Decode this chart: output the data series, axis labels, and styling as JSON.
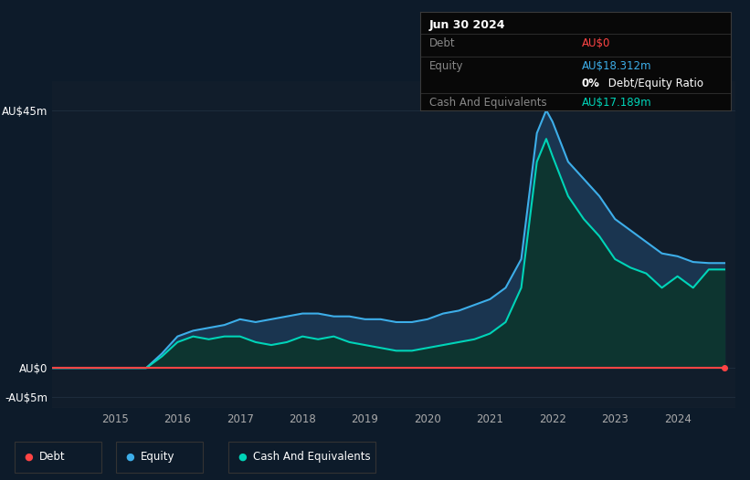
{
  "bg_color": "#0d1b2a",
  "plot_bg_color": "#111d2b",
  "ylim": [
    -7,
    50
  ],
  "y_ticks": [
    45,
    0,
    -5
  ],
  "y_tick_labels": [
    "AU$45m",
    "AU$0",
    "-AU$5m"
  ],
  "x_ticks": [
    2015,
    2016,
    2017,
    2018,
    2019,
    2020,
    2021,
    2022,
    2023,
    2024
  ],
  "xlim": [
    2014.0,
    2024.92
  ],
  "debt_color": "#ff4444",
  "equity_color": "#3daee9",
  "equity_fill_color": "#1a3550",
  "cash_color": "#00d4b8",
  "cash_fill_color": "#0d3530",
  "grid_color": "#1e2d3d",
  "years": [
    2014.0,
    2014.5,
    2015.0,
    2015.5,
    2015.75,
    2016.0,
    2016.25,
    2016.5,
    2016.75,
    2017.0,
    2017.25,
    2017.5,
    2017.75,
    2018.0,
    2018.25,
    2018.5,
    2018.75,
    2019.0,
    2019.25,
    2019.5,
    2019.75,
    2020.0,
    2020.25,
    2020.5,
    2020.75,
    2021.0,
    2021.25,
    2021.5,
    2021.75,
    2021.9,
    2022.0,
    2022.25,
    2022.5,
    2022.75,
    2023.0,
    2023.25,
    2023.5,
    2023.75,
    2024.0,
    2024.25,
    2024.5,
    2024.75
  ],
  "equity": [
    0,
    0,
    0,
    0,
    2.5,
    5.5,
    6.5,
    7.0,
    7.5,
    8.5,
    8.0,
    8.5,
    9.0,
    9.5,
    9.5,
    9.0,
    9.0,
    8.5,
    8.5,
    8.0,
    8.0,
    8.5,
    9.5,
    10.0,
    11.0,
    12.0,
    14.0,
    19.0,
    41.0,
    45.0,
    43.0,
    36.0,
    33.0,
    30.0,
    26.0,
    24.0,
    22.0,
    20.0,
    19.5,
    18.5,
    18.312,
    18.312
  ],
  "cash": [
    0,
    0,
    0,
    0,
    2.0,
    4.5,
    5.5,
    5.0,
    5.5,
    5.5,
    4.5,
    4.0,
    4.5,
    5.5,
    5.0,
    5.5,
    4.5,
    4.0,
    3.5,
    3.0,
    3.0,
    3.5,
    4.0,
    4.5,
    5.0,
    6.0,
    8.0,
    14.0,
    36.0,
    40.0,
    37.0,
    30.0,
    26.0,
    23.0,
    19.0,
    17.5,
    16.5,
    14.0,
    16.0,
    14.0,
    17.189,
    17.189
  ],
  "debt": [
    0,
    0,
    0,
    0,
    0,
    0,
    0,
    0,
    0,
    0,
    0,
    0,
    0,
    0,
    0,
    0,
    0,
    0,
    0,
    0,
    0,
    0,
    0,
    0,
    0,
    0,
    0,
    0,
    0,
    0,
    0,
    0,
    0,
    0,
    0,
    0,
    0,
    0,
    0,
    0,
    0,
    0
  ],
  "info_box_title": "Jun 30 2024",
  "info_debt_label": "Debt",
  "info_debt_value": "AU$0",
  "info_debt_color": "#ff4444",
  "info_equity_label": "Equity",
  "info_equity_value": "AU$18.312m",
  "info_equity_color": "#3daee9",
  "info_sub_bold": "0%",
  "info_sub_rest": " Debt/Equity Ratio",
  "info_cash_label": "Cash And Equivalents",
  "info_cash_value": "AU$17.189m",
  "info_cash_color": "#00d4b8",
  "legend_items": [
    {
      "label": "Debt",
      "color": "#ff4444"
    },
    {
      "label": "Equity",
      "color": "#3daee9"
    },
    {
      "label": "Cash And Equivalents",
      "color": "#00d4b8"
    }
  ]
}
